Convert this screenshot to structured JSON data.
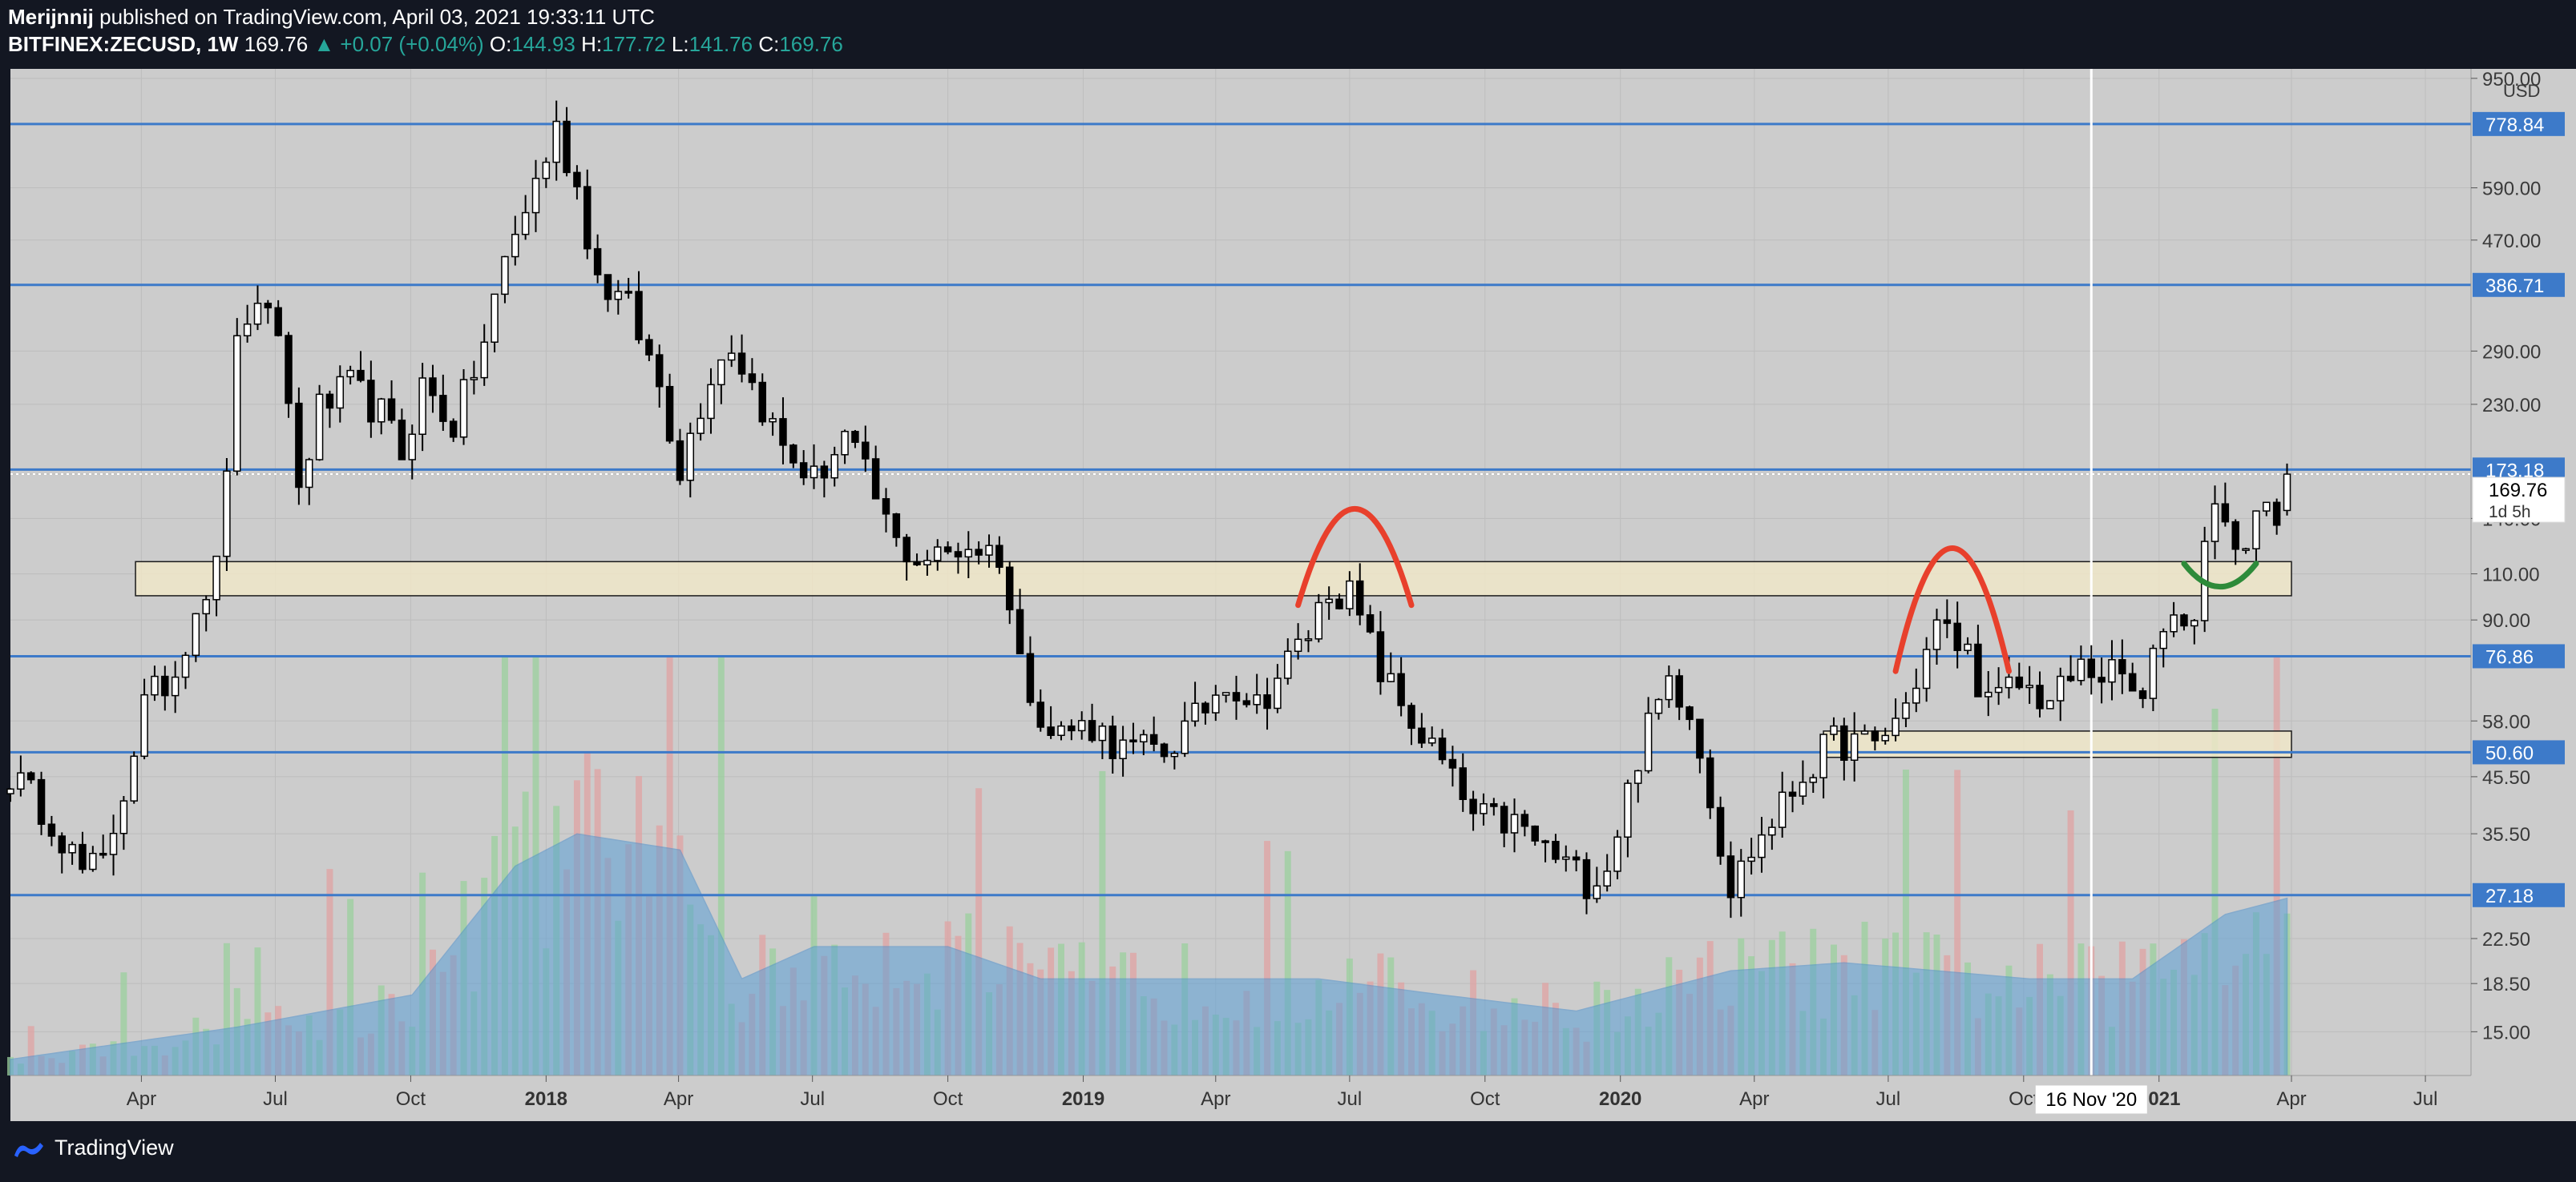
{
  "header": {
    "author": "Merijnnij",
    "published_text": "published on TradingView.com, April 03, 2021 19:33:11 UTC",
    "symbol": "BITFINEX:ZECUSD, 1W",
    "last": "169.76",
    "change": "+0.07 (+0.04%)",
    "o_label": "O:",
    "o": "144.93",
    "h_label": "H:",
    "h": "177.72",
    "l_label": "L:",
    "l": "141.76",
    "c_label": "C:",
    "c": "169.76"
  },
  "footer": {
    "brand": "TradingView",
    "icon": "tradingview-logo-icon"
  },
  "colors": {
    "chart_bg": "#cccccc",
    "frame": "#131722",
    "level_line": "#3d7ac9",
    "zone_fill": "#efe6c8",
    "arc_red": "#e8402c",
    "arc_green": "#2e8b3a",
    "volume_area": "#5b9fd6",
    "vol_up": "#9bd09e",
    "vol_down": "#e0a3a3"
  },
  "chart_data": {
    "type": "candlestick",
    "y_scale": "log",
    "y_unit": "USD",
    "ylim": [
      12.4,
      990
    ],
    "x_start": "2017-01-02",
    "x_end": "2021-08-01",
    "x_ticks": [
      {
        "date": "2017-04-01",
        "label": "Apr"
      },
      {
        "date": "2017-07-01",
        "label": "Jul"
      },
      {
        "date": "2017-10-01",
        "label": "Oct"
      },
      {
        "date": "2018-01-01",
        "label": "2018"
      },
      {
        "date": "2018-04-01",
        "label": "Apr"
      },
      {
        "date": "2018-07-01",
        "label": "Jul"
      },
      {
        "date": "2018-10-01",
        "label": "Oct"
      },
      {
        "date": "2019-01-01",
        "label": "2019"
      },
      {
        "date": "2019-04-01",
        "label": "Apr"
      },
      {
        "date": "2019-07-01",
        "label": "Jul"
      },
      {
        "date": "2019-10-01",
        "label": "Oct"
      },
      {
        "date": "2020-01-01",
        "label": "2020"
      },
      {
        "date": "2020-04-01",
        "label": "Apr"
      },
      {
        "date": "2020-07-01",
        "label": "Jul"
      },
      {
        "date": "2020-10-01",
        "label": "Oct"
      },
      {
        "date": "2021-01-01",
        "label": "2021"
      },
      {
        "date": "2021-04-01",
        "label": "Apr"
      },
      {
        "date": "2021-07-01",
        "label": "Jul"
      }
    ],
    "y_ticks": [
      15.0,
      18.5,
      22.5,
      27.18,
      35.5,
      45.5,
      50.6,
      58.0,
      76.86,
      90.0,
      110.0,
      140.0,
      169.76,
      173.18,
      230.0,
      290.0,
      386.71,
      470.0,
      590.0,
      778.84,
      950.0
    ],
    "y_tick_labels": [
      "15.00",
      "18.50",
      "22.50",
      "",
      "35.50",
      "45.50",
      "",
      "58.00",
      "",
      "90.00",
      "110.00",
      "140.00",
      "",
      "",
      "230.00",
      "290.00",
      "",
      "470.00",
      "590.00",
      "",
      "950.00"
    ],
    "horizontal_levels": [
      {
        "value": 778.84,
        "label": "778.84"
      },
      {
        "value": 386.71,
        "label": "386.71"
      },
      {
        "value": 173.18,
        "label": "173.18"
      },
      {
        "value": 76.86,
        "label": "76.86"
      },
      {
        "value": 50.6,
        "label": "50.60"
      },
      {
        "value": 27.18,
        "label": "27.18"
      }
    ],
    "current_price": {
      "value": 169.76,
      "label": "169.76",
      "countdown": "1d 5h"
    },
    "zones": [
      {
        "x_from": "2017-03-28",
        "x_to": "2021-04-01",
        "y_low": 100,
        "y_high": 116
      },
      {
        "x_from": "2020-05-18",
        "x_to": "2021-04-01",
        "y_low": 49.5,
        "y_high": 55.5
      }
    ],
    "annotations": [
      {
        "type": "arc",
        "color": "red",
        "x_from": "2019-05-27",
        "x_to": "2019-08-12",
        "y_base": 96,
        "y_peak": 146
      },
      {
        "type": "arc",
        "color": "red",
        "x_from": "2020-07-06",
        "x_to": "2020-09-21",
        "y_base": 72,
        "y_peak": 123
      },
      {
        "type": "arc",
        "color": "green",
        "x_from": "2021-01-18",
        "x_to": "2021-03-08",
        "y_base": 115,
        "y_peak": 104
      }
    ],
    "crosshair": {
      "date": "2020-11-16",
      "label": "16 Nov '20"
    },
    "price_path": [
      [
        "2017-01-02",
        46
      ],
      [
        "2017-01-30",
        38
      ],
      [
        "2017-02-20",
        30
      ],
      [
        "2017-03-06",
        31
      ],
      [
        "2017-03-20",
        43
      ],
      [
        "2017-04-03",
        62
      ],
      [
        "2017-04-24",
        72
      ],
      [
        "2017-05-08",
        96
      ],
      [
        "2017-05-22",
        112
      ],
      [
        "2017-06-05",
        290
      ],
      [
        "2017-06-12",
        340
      ],
      [
        "2017-07-03",
        320
      ],
      [
        "2017-07-17",
        160
      ],
      [
        "2017-07-31",
        225
      ],
      [
        "2017-08-21",
        248
      ],
      [
        "2017-09-11",
        220
      ],
      [
        "2017-09-25",
        185
      ],
      [
        "2017-10-09",
        250
      ],
      [
        "2017-10-30",
        210
      ],
      [
        "2017-11-20",
        300
      ],
      [
        "2017-12-04",
        430
      ],
      [
        "2017-12-18",
        540
      ],
      [
        "2018-01-08",
        760
      ],
      [
        "2018-01-22",
        590
      ],
      [
        "2018-02-05",
        400
      ],
      [
        "2018-02-26",
        350
      ],
      [
        "2018-03-19",
        250
      ],
      [
        "2018-04-02",
        175
      ],
      [
        "2018-04-23",
        265
      ],
      [
        "2018-05-07",
        300
      ],
      [
        "2018-05-21",
        250
      ],
      [
        "2018-06-11",
        190
      ],
      [
        "2018-07-02",
        165
      ],
      [
        "2018-07-23",
        200
      ],
      [
        "2018-08-06",
        168
      ],
      [
        "2018-08-27",
        125
      ],
      [
        "2018-09-10",
        118
      ],
      [
        "2018-09-24",
        118
      ],
      [
        "2018-10-15",
        125
      ],
      [
        "2018-11-05",
        120
      ],
      [
        "2018-11-19",
        75
      ],
      [
        "2018-12-10",
        55
      ],
      [
        "2019-01-07",
        57
      ],
      [
        "2019-01-28",
        51
      ],
      [
        "2019-02-25",
        51
      ],
      [
        "2019-03-18",
        58
      ],
      [
        "2019-04-08",
        70
      ],
      [
        "2019-04-29",
        62
      ],
      [
        "2019-05-20",
        75
      ],
      [
        "2019-06-03",
        85
      ],
      [
        "2019-06-17",
        104
      ],
      [
        "2019-07-01",
        100
      ],
      [
        "2019-07-22",
        72
      ],
      [
        "2019-08-12",
        58
      ],
      [
        "2019-09-02",
        48
      ],
      [
        "2019-09-23",
        38
      ],
      [
        "2019-10-21",
        37
      ],
      [
        "2019-11-18",
        32
      ],
      [
        "2019-12-09",
        29
      ],
      [
        "2019-12-23",
        31
      ],
      [
        "2020-01-13",
        50
      ],
      [
        "2020-02-03",
        70
      ],
      [
        "2020-02-17",
        62
      ],
      [
        "2020-03-02",
        42
      ],
      [
        "2020-03-16",
        28
      ],
      [
        "2020-03-30",
        33
      ],
      [
        "2020-04-20",
        40
      ],
      [
        "2020-05-04",
        46
      ],
      [
        "2020-05-25",
        53
      ],
      [
        "2020-06-22",
        52
      ],
      [
        "2020-07-13",
        62
      ],
      [
        "2020-08-03",
        88
      ],
      [
        "2020-08-24",
        78
      ],
      [
        "2020-09-07",
        62
      ],
      [
        "2020-09-28",
        68
      ],
      [
        "2020-10-19",
        63
      ],
      [
        "2020-11-09",
        73
      ],
      [
        "2020-12-07",
        70
      ],
      [
        "2020-12-21",
        62
      ],
      [
        "2021-01-04",
        90
      ],
      [
        "2021-01-25",
        93
      ],
      [
        "2021-02-08",
        160
      ],
      [
        "2021-02-22",
        115
      ],
      [
        "2021-03-08",
        145
      ],
      [
        "2021-03-22",
        146
      ],
      [
        "2021-03-29",
        169.76
      ]
    ],
    "volume_path": [
      [
        "2017-01-02",
        0.02
      ],
      [
        "2017-06-05",
        0.06
      ],
      [
        "2017-10-02",
        0.1
      ],
      [
        "2017-12-11",
        0.26
      ],
      [
        "2018-01-22",
        0.3
      ],
      [
        "2018-04-02",
        0.28
      ],
      [
        "2018-05-14",
        0.12
      ],
      [
        "2018-07-02",
        0.16
      ],
      [
        "2018-10-01",
        0.16
      ],
      [
        "2018-12-03",
        0.12
      ],
      [
        "2019-06-10",
        0.12
      ],
      [
        "2019-09-02",
        0.1
      ],
      [
        "2019-12-02",
        0.08
      ],
      [
        "2020-03-16",
        0.13
      ],
      [
        "2020-06-01",
        0.14
      ],
      [
        "2020-10-05",
        0.12
      ],
      [
        "2020-12-14",
        0.12
      ],
      [
        "2021-02-15",
        0.2
      ],
      [
        "2021-03-29",
        0.22
      ]
    ]
  }
}
